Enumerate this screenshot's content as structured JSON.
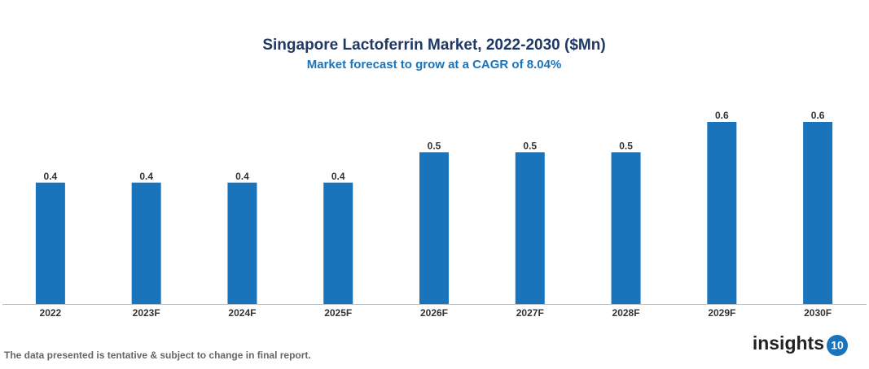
{
  "chart_data": {
    "type": "bar",
    "title": "Singapore Lactoferrin Market, 2022-2030 ($Mn)",
    "subtitle": "Market forecast to grow at a CAGR of 8.04%",
    "categories": [
      "2022",
      "2023F",
      "2024F",
      "2025F",
      "2026F",
      "2027F",
      "2028F",
      "2029F",
      "2030F"
    ],
    "values": [
      0.4,
      0.4,
      0.4,
      0.4,
      0.5,
      0.5,
      0.5,
      0.6,
      0.6
    ],
    "color": "#1a74bb"
  },
  "footnote": "The data presented is tentative & subject to change in final report.",
  "brand": {
    "name": "insights",
    "number": "10"
  }
}
